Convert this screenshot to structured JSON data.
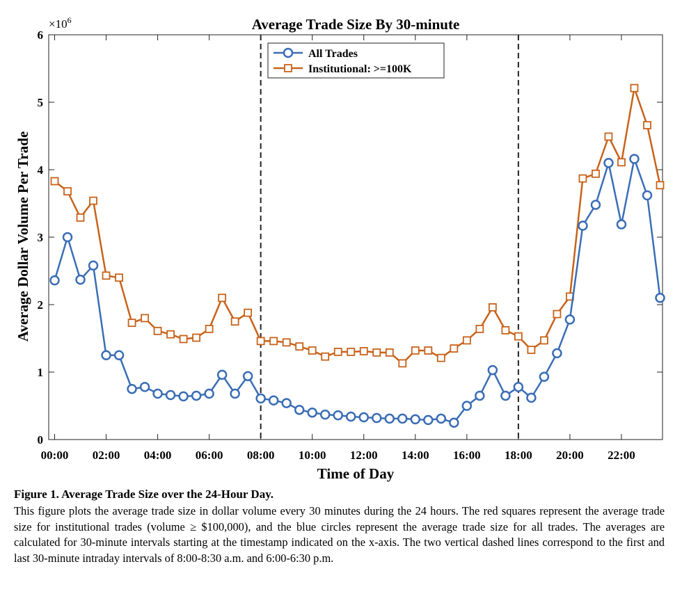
{
  "chart_data": {
    "type": "line",
    "title": "Average Trade Size By 30-minute",
    "xlabel": "Time of Day",
    "ylabel": "Average Dollar Volume Per Trade",
    "y_multiplier_label": "×10",
    "y_multiplier_exp": "6",
    "ylim": [
      0,
      6
    ],
    "y_ticks": [
      "0",
      "1",
      "2",
      "3",
      "4",
      "5",
      "6"
    ],
    "x_ticks": [
      "00:00",
      "02:00",
      "04:00",
      "06:00",
      "08:00",
      "10:00",
      "12:00",
      "14:00",
      "16:00",
      "18:00",
      "20:00",
      "22:00"
    ],
    "grid": false,
    "legend_position": "top-center",
    "vertical_lines_hours": [
      8,
      18
    ],
    "series": [
      {
        "name": "All Trades",
        "color": "#3a6db5",
        "marker": "circle",
        "values": [
          2.36,
          3.0,
          2.37,
          2.58,
          1.25,
          1.25,
          0.75,
          0.78,
          0.68,
          0.66,
          0.64,
          0.65,
          0.68,
          0.96,
          0.68,
          0.94,
          0.61,
          0.58,
          0.54,
          0.44,
          0.4,
          0.37,
          0.36,
          0.34,
          0.33,
          0.32,
          0.31,
          0.31,
          0.3,
          0.29,
          0.31,
          0.25,
          0.5,
          0.65,
          1.03,
          0.65,
          0.78,
          0.62,
          0.93,
          1.28,
          1.78,
          3.17,
          3.48,
          4.1,
          3.19,
          4.16,
          3.62,
          2.1
        ]
      },
      {
        "name": "Institutional: >=100K",
        "color": "#c8621a",
        "marker": "square",
        "values": [
          3.83,
          3.68,
          3.29,
          3.54,
          2.43,
          2.4,
          1.73,
          1.8,
          1.61,
          1.56,
          1.49,
          1.51,
          1.64,
          2.1,
          1.75,
          1.88,
          1.46,
          1.46,
          1.44,
          1.38,
          1.32,
          1.23,
          1.3,
          1.3,
          1.31,
          1.29,
          1.29,
          1.13,
          1.32,
          1.32,
          1.21,
          1.35,
          1.47,
          1.64,
          1.96,
          1.62,
          1.53,
          1.33,
          1.47,
          1.86,
          2.12,
          3.87,
          3.94,
          4.49,
          4.11,
          5.21,
          4.66,
          3.77
        ]
      }
    ]
  },
  "caption": {
    "title": "Figure 1. Average Trade Size over the 24-Hour Day.",
    "body": "This figure plots the average trade size in dollar volume every 30 minutes during the 24 hours. The red squares represent the average trade size for institutional trades (volume ≥ $100,000), and the blue circles represent the average trade size for all trades. The averages are calculated for 30-minute intervals starting at the timestamp indicated on the x-axis. The two vertical dashed lines correspond to the first and last 30-minute intraday intervals of 8:00-8:30 a.m. and 6:00-6:30 p.m."
  }
}
